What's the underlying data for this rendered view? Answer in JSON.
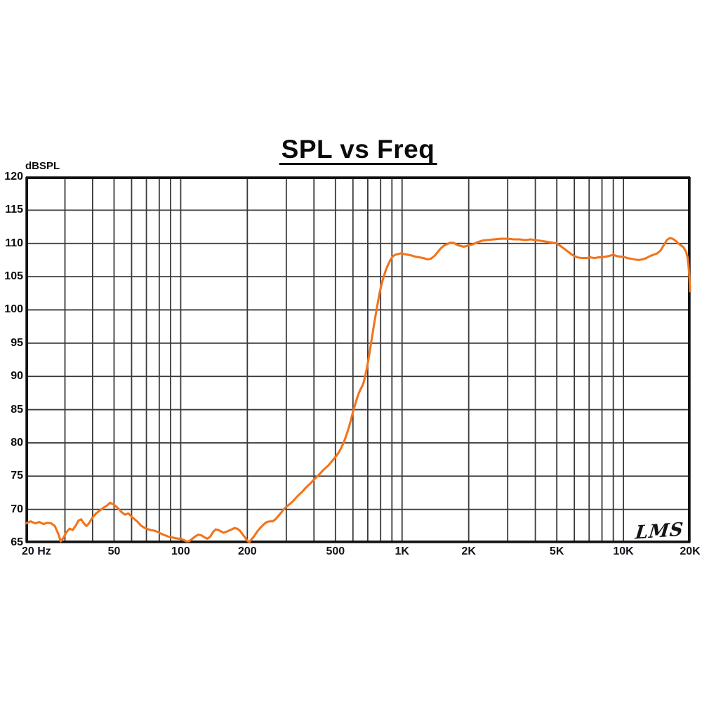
{
  "page": {
    "background": "#ffffff"
  },
  "chart_data": {
    "type": "line",
    "title": "SPL vs Freq",
    "ylabel": "dBSPL",
    "xlabel": "",
    "signature": "LMS",
    "x_scale": "log",
    "xlim": [
      20,
      20000
    ],
    "ylim": [
      65,
      120
    ],
    "grid": true,
    "legend": "none",
    "x_gridlines": [
      20,
      30,
      40,
      50,
      60,
      70,
      80,
      90,
      100,
      200,
      300,
      400,
      500,
      600,
      700,
      800,
      900,
      1000,
      2000,
      3000,
      4000,
      5000,
      6000,
      7000,
      8000,
      9000,
      10000,
      20000
    ],
    "y_gridlines": [
      65,
      70,
      75,
      80,
      85,
      90,
      95,
      100,
      105,
      110,
      115,
      120
    ],
    "x_ticks": [
      {
        "f": 20,
        "label": "20 Hz",
        "align": "left"
      },
      {
        "f": 50,
        "label": "50",
        "align": "center"
      },
      {
        "f": 100,
        "label": "100",
        "align": "center"
      },
      {
        "f": 200,
        "label": "200",
        "align": "center"
      },
      {
        "f": 500,
        "label": "500",
        "align": "center"
      },
      {
        "f": 1000,
        "label": "1K",
        "align": "center"
      },
      {
        "f": 2000,
        "label": "2K",
        "align": "center"
      },
      {
        "f": 5000,
        "label": "5K",
        "align": "center"
      },
      {
        "f": 10000,
        "label": "10K",
        "align": "center"
      },
      {
        "f": 20000,
        "label": "20K",
        "align": "center"
      }
    ],
    "y_ticks": [
      {
        "value": 120,
        "label": "120"
      },
      {
        "value": 115,
        "label": "115"
      },
      {
        "value": 110,
        "label": "110"
      },
      {
        "value": 105,
        "label": "105"
      },
      {
        "value": 100,
        "label": "100"
      },
      {
        "value": 95,
        "label": "95"
      },
      {
        "value": 90,
        "label": "90"
      },
      {
        "value": 85,
        "label": "85"
      },
      {
        "value": 80,
        "label": "80"
      },
      {
        "value": 75,
        "label": "75"
      },
      {
        "value": 70,
        "label": "70"
      },
      {
        "value": 65,
        "label": "65"
      }
    ],
    "style": {
      "curve_color": "#f2741b",
      "grid_color": "#3a3a3a",
      "border_color": "#131313",
      "label_color": "#0c0c0c",
      "title_color": "#0a0a0a",
      "background": "#ffffff"
    },
    "series": [
      {
        "name": "SPL",
        "units": "dBSPL",
        "points": [
          [
            20,
            67.9
          ],
          [
            21,
            68.2
          ],
          [
            22,
            67.9
          ],
          [
            23,
            68.1
          ],
          [
            24,
            67.8
          ],
          [
            25,
            68.0
          ],
          [
            26,
            67.9
          ],
          [
            27,
            67.5
          ],
          [
            28,
            66.3
          ],
          [
            28.7,
            65.2
          ],
          [
            29.5,
            65.7
          ],
          [
            30.5,
            66.6
          ],
          [
            31.5,
            67.1
          ],
          [
            32.5,
            66.9
          ],
          [
            33.5,
            67.5
          ],
          [
            34.5,
            68.3
          ],
          [
            35.5,
            68.5
          ],
          [
            36.5,
            67.9
          ],
          [
            37.5,
            67.5
          ],
          [
            38.5,
            67.9
          ],
          [
            40,
            68.8
          ],
          [
            41.5,
            69.4
          ],
          [
            43,
            69.8
          ],
          [
            45,
            70.3
          ],
          [
            46.5,
            70.6
          ],
          [
            48,
            71.0
          ],
          [
            50,
            70.7
          ],
          [
            52,
            70.2
          ],
          [
            54,
            69.6
          ],
          [
            56,
            69.2
          ],
          [
            58,
            69.4
          ],
          [
            60,
            68.9
          ],
          [
            62,
            68.5
          ],
          [
            64,
            68.1
          ],
          [
            66,
            67.6
          ],
          [
            68,
            67.3
          ],
          [
            70,
            67.1
          ],
          [
            73,
            66.9
          ],
          [
            76,
            66.8
          ],
          [
            79,
            66.6
          ],
          [
            82,
            66.3
          ],
          [
            85,
            66.1
          ],
          [
            88,
            65.9
          ],
          [
            91,
            65.8
          ],
          [
            94,
            65.7
          ],
          [
            97,
            65.6
          ],
          [
            100,
            65.6
          ],
          [
            103,
            65.4
          ],
          [
            106,
            65.2
          ],
          [
            109,
            65.2
          ],
          [
            112,
            65.5
          ],
          [
            116,
            65.9
          ],
          [
            120,
            66.2
          ],
          [
            124,
            66.1
          ],
          [
            128,
            65.8
          ],
          [
            132,
            65.6
          ],
          [
            136,
            65.9
          ],
          [
            140,
            66.6
          ],
          [
            144,
            67.0
          ],
          [
            148,
            66.9
          ],
          [
            152,
            66.7
          ],
          [
            156,
            66.5
          ],
          [
            160,
            66.6
          ],
          [
            165,
            66.8
          ],
          [
            170,
            67.0
          ],
          [
            175,
            67.2
          ],
          [
            180,
            67.1
          ],
          [
            185,
            66.8
          ],
          [
            190,
            66.3
          ],
          [
            195,
            65.8
          ],
          [
            200,
            65.3
          ],
          [
            204,
            65.1
          ],
          [
            209,
            65.5
          ],
          [
            215,
            66.0
          ],
          [
            222,
            66.7
          ],
          [
            230,
            67.3
          ],
          [
            238,
            67.8
          ],
          [
            245,
            68.1
          ],
          [
            252,
            68.2
          ],
          [
            260,
            68.2
          ],
          [
            268,
            68.5
          ],
          [
            276,
            69.0
          ],
          [
            284,
            69.5
          ],
          [
            292,
            70.0
          ],
          [
            300,
            70.4
          ],
          [
            308,
            70.7
          ],
          [
            316,
            71.0
          ],
          [
            325,
            71.4
          ],
          [
            335,
            71.9
          ],
          [
            345,
            72.3
          ],
          [
            355,
            72.7
          ],
          [
            366,
            73.2
          ],
          [
            377,
            73.6
          ],
          [
            388,
            74.0
          ],
          [
            400,
            74.5
          ],
          [
            412,
            74.9
          ],
          [
            424,
            75.3
          ],
          [
            437,
            75.8
          ],
          [
            450,
            76.2
          ],
          [
            464,
            76.6
          ],
          [
            478,
            77.1
          ],
          [
            492,
            77.6
          ],
          [
            506,
            78.1
          ],
          [
            518,
            78.6
          ],
          [
            530,
            79.2
          ],
          [
            542,
            79.9
          ],
          [
            554,
            80.7
          ],
          [
            566,
            81.6
          ],
          [
            578,
            82.6
          ],
          [
            590,
            83.7
          ],
          [
            602,
            84.8
          ],
          [
            614,
            85.8
          ],
          [
            626,
            86.7
          ],
          [
            638,
            87.5
          ],
          [
            650,
            88.1
          ],
          [
            662,
            88.6
          ],
          [
            672,
            89.2
          ],
          [
            682,
            90.1
          ],
          [
            694,
            91.3
          ],
          [
            706,
            92.7
          ],
          [
            718,
            94.2
          ],
          [
            730,
            95.7
          ],
          [
            742,
            97.2
          ],
          [
            754,
            98.6
          ],
          [
            766,
            99.9
          ],
          [
            778,
            101.2
          ],
          [
            790,
            102.4
          ],
          [
            802,
            103.4
          ],
          [
            816,
            104.4
          ],
          [
            830,
            105.2
          ],
          [
            845,
            106.0
          ],
          [
            860,
            106.6
          ],
          [
            876,
            107.2
          ],
          [
            893,
            107.7
          ],
          [
            911,
            108.1
          ],
          [
            935,
            108.3
          ],
          [
            960,
            108.4
          ],
          [
            990,
            108.5
          ],
          [
            1020,
            108.4
          ],
          [
            1060,
            108.3
          ],
          [
            1100,
            108.2
          ],
          [
            1150,
            108.0
          ],
          [
            1200,
            107.9
          ],
          [
            1250,
            107.8
          ],
          [
            1300,
            107.6
          ],
          [
            1350,
            107.7
          ],
          [
            1400,
            108.1
          ],
          [
            1450,
            108.7
          ],
          [
            1500,
            109.3
          ],
          [
            1550,
            109.7
          ],
          [
            1600,
            109.9
          ],
          [
            1650,
            110.1
          ],
          [
            1700,
            110.1
          ],
          [
            1750,
            109.9
          ],
          [
            1800,
            109.7
          ],
          [
            1850,
            109.6
          ],
          [
            1900,
            109.5
          ],
          [
            1950,
            109.6
          ],
          [
            2000,
            109.7
          ],
          [
            2100,
            109.9
          ],
          [
            2200,
            110.2
          ],
          [
            2300,
            110.4
          ],
          [
            2400,
            110.5
          ],
          [
            2600,
            110.6
          ],
          [
            2800,
            110.7
          ],
          [
            3000,
            110.7
          ],
          [
            3200,
            110.6
          ],
          [
            3400,
            110.6
          ],
          [
            3600,
            110.5
          ],
          [
            3800,
            110.6
          ],
          [
            4000,
            110.5
          ],
          [
            4200,
            110.4
          ],
          [
            4400,
            110.3
          ],
          [
            4600,
            110.2
          ],
          [
            4800,
            110.1
          ],
          [
            5000,
            110.0
          ],
          [
            5200,
            109.6
          ],
          [
            5400,
            109.2
          ],
          [
            5600,
            108.8
          ],
          [
            5800,
            108.4
          ],
          [
            6000,
            108.1
          ],
          [
            6200,
            107.9
          ],
          [
            6500,
            107.8
          ],
          [
            6800,
            107.8
          ],
          [
            7100,
            107.9
          ],
          [
            7400,
            107.8
          ],
          [
            7700,
            107.9
          ],
          [
            8000,
            107.9
          ],
          [
            8300,
            108.0
          ],
          [
            8600,
            108.1
          ],
          [
            9000,
            108.3
          ],
          [
            9300,
            108.1
          ],
          [
            9700,
            108.0
          ],
          [
            10000,
            108.0
          ],
          [
            10400,
            107.8
          ],
          [
            10800,
            107.7
          ],
          [
            11200,
            107.6
          ],
          [
            11700,
            107.5
          ],
          [
            12200,
            107.6
          ],
          [
            12700,
            107.8
          ],
          [
            13200,
            108.1
          ],
          [
            13700,
            108.3
          ],
          [
            14200,
            108.5
          ],
          [
            14700,
            108.9
          ],
          [
            15200,
            109.7
          ],
          [
            15700,
            110.5
          ],
          [
            16200,
            110.8
          ],
          [
            16700,
            110.7
          ],
          [
            17200,
            110.4
          ],
          [
            17700,
            110.0
          ],
          [
            18200,
            109.7
          ],
          [
            18700,
            109.4
          ],
          [
            19200,
            108.7
          ],
          [
            19500,
            107.9
          ],
          [
            19700,
            106.5
          ],
          [
            19900,
            104.5
          ],
          [
            20000,
            102.8
          ]
        ]
      }
    ]
  }
}
